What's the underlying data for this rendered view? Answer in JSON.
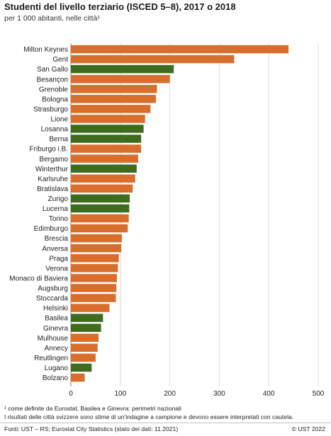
{
  "header": {
    "title": "Studenti del livello terziario (ISCED 5–8), 2017 o 2018",
    "subtitle": "per 1 000 abitanti, nelle città¹"
  },
  "colors": {
    "orange": "#d96e2c",
    "green": "#3f6b1f",
    "grid": "#dcdcdc"
  },
  "footer": {
    "note1": "¹   come definite da Eurostat, Basilea e Ginevra: perimetri nazionali",
    "note2": "I risultati delle città svizzere sono stime di un'indagine a campione e devono essere interpretati con cautela.",
    "source": "Fonti: UST – RS; Eurostat City Statistics (stato dei dati: 11.2021)",
    "copyright": "© UST 2022"
  },
  "chart_data": {
    "type": "bar",
    "orientation": "horizontal",
    "xlim": [
      0,
      500
    ],
    "xticks": [
      0,
      100,
      200,
      300,
      400,
      500
    ],
    "grid": true,
    "categories": [
      "Milton Keynes",
      "Gent",
      "San Gallo",
      "Besançon",
      "Grenoble",
      "Bologna",
      "Strasburgo",
      "Lione",
      "Losanna",
      "Berna",
      "Friburgo i.B.",
      "Bergamo",
      "Winterthur",
      "Karlsruhe",
      "Bratislava",
      "Zurigo",
      "Lucerna",
      "Torino",
      "Edimburgo",
      "Brescia",
      "Anversa",
      "Praga",
      "Verona",
      "Monaco di Baviera",
      "Augsburg",
      "Stoccarda",
      "Helsinki",
      "Basilea",
      "Ginevra",
      "Mulhouse",
      "Annecy",
      "Reutlingen",
      "Lugano",
      "Bolzano"
    ],
    "values": [
      440,
      330,
      208,
      200,
      174,
      172,
      161,
      150,
      147,
      142,
      142,
      136,
      133,
      130,
      125,
      119,
      118,
      117,
      115,
      103,
      102,
      97,
      95,
      93,
      92,
      91,
      78,
      65,
      61,
      56,
      54,
      50,
      42,
      28
    ],
    "color_keys": [
      "orange",
      "orange",
      "green",
      "orange",
      "orange",
      "orange",
      "orange",
      "orange",
      "green",
      "green",
      "orange",
      "orange",
      "green",
      "orange",
      "orange",
      "green",
      "green",
      "orange",
      "orange",
      "orange",
      "orange",
      "orange",
      "orange",
      "orange",
      "orange",
      "orange",
      "orange",
      "green",
      "green",
      "orange",
      "orange",
      "orange",
      "green",
      "orange"
    ]
  }
}
